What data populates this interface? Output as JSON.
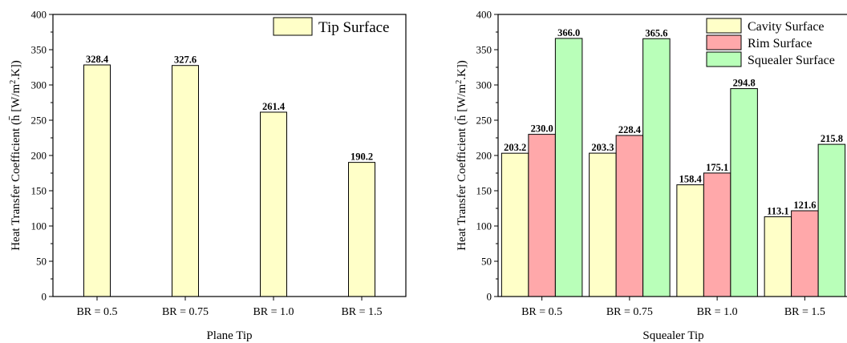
{
  "colors": {
    "tip": "#FFFFC8",
    "cavity": "#FFFFC8",
    "rim": "#FFA8AA",
    "squealer": "#B9FFB9",
    "axis": "#000000"
  },
  "chart_data": [
    {
      "type": "bar",
      "title": "",
      "xlabel": "Plane Tip",
      "ylabel": "Heat Transfer Coefficient",
      "ylabel_symbol": "h̄",
      "ylabel_unit": "[W/m",
      "ylabel_unit_sup": "2",
      "ylabel_unit_tail": ".K]",
      "ylim": [
        0,
        400
      ],
      "yticks": [
        "0",
        "50",
        "100",
        "150",
        "200",
        "250",
        "300",
        "350",
        "400"
      ],
      "categories": [
        "BR = 0.5",
        "BR = 0.75",
        "BR = 1.0",
        "BR = 1.5"
      ],
      "series": [
        {
          "name": "Tip Surface",
          "values": [
            328.4,
            327.6,
            261.4,
            190.2
          ],
          "labels": [
            "328.4",
            "327.6",
            "261.4",
            "190.2"
          ]
        }
      ],
      "legend": "top-right",
      "grid": false
    },
    {
      "type": "bar",
      "title": "",
      "xlabel": "Squealer Tip",
      "ylabel": "Heat Transfer Coefficient",
      "ylabel_symbol": "h̄",
      "ylabel_unit": "[W/m",
      "ylabel_unit_sup": "2",
      "ylabel_unit_tail": ".K]",
      "ylim": [
        0,
        400
      ],
      "yticks": [
        "0",
        "50",
        "100",
        "150",
        "200",
        "250",
        "300",
        "350",
        "400"
      ],
      "categories": [
        "BR = 0.5",
        "BR = 0.75",
        "BR = 1.0",
        "BR = 1.5"
      ],
      "series": [
        {
          "name": "Cavity Surface",
          "values": [
            203.2,
            203.3,
            158.4,
            113.1
          ],
          "labels": [
            "203.2",
            "203.3",
            "158.4",
            "113.1"
          ]
        },
        {
          "name": "Rim Surface",
          "values": [
            230.0,
            228.4,
            175.1,
            121.6
          ],
          "labels": [
            "230.0",
            "228.4",
            "175.1",
            "121.6"
          ]
        },
        {
          "name": "Squealer Surface",
          "values": [
            366.0,
            365.6,
            294.8,
            215.8
          ],
          "labels": [
            "366.0",
            "365.6",
            "294.8",
            "215.8"
          ]
        }
      ],
      "legend": "top-right",
      "grid": false
    }
  ]
}
